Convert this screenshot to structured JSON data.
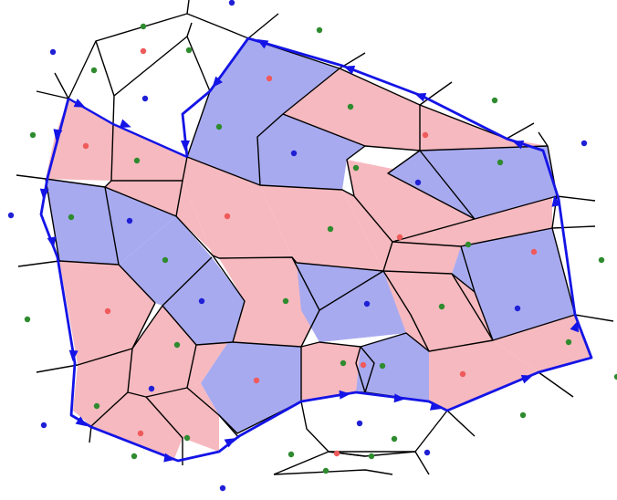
{
  "diagram": {
    "kind": "voronoi-cell-complex",
    "colors": {
      "pink_fill": "#f6b9bf",
      "blue_fill": "#a8aaf0",
      "edge": "#000000",
      "boundary": "#1414e6",
      "dot_red": "#ef5a5a",
      "dot_green": "#2e8b2e",
      "dot_blue": "#1f1fd6"
    },
    "cell_kinds": [
      "pink",
      "pink",
      "blue",
      "pink",
      "blue",
      "pink",
      "pink",
      "blue",
      "pink",
      "pink",
      "blue",
      "pink",
      "blue",
      "pink",
      "pink",
      "pink",
      "blue",
      "blue",
      "pink",
      "pink",
      "blue",
      "pink",
      "pink",
      "pink",
      "pink",
      "blue",
      "pink",
      "blue",
      "blue",
      "pink",
      "pink",
      "pink",
      "blue",
      "pink",
      "pink"
    ],
    "icons": {
      "boundary_arrow": "arrowhead-icon"
    }
  }
}
